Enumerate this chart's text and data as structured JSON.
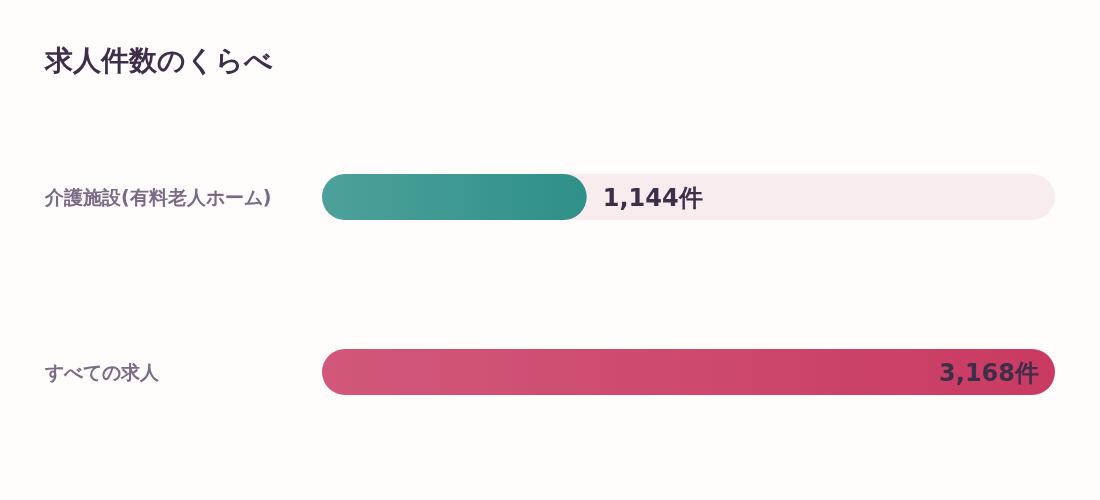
{
  "chart_data": {
    "type": "bar",
    "orientation": "horizontal",
    "title": "求人件数のくらべ",
    "categories": [
      "介護施設(有料老人ホーム)",
      "すべての求人"
    ],
    "values": [
      1144,
      3168
    ],
    "colors": [
      "#2e9088",
      "#c93a62"
    ],
    "value_labels": [
      "1,144件",
      "3,168件"
    ]
  }
}
